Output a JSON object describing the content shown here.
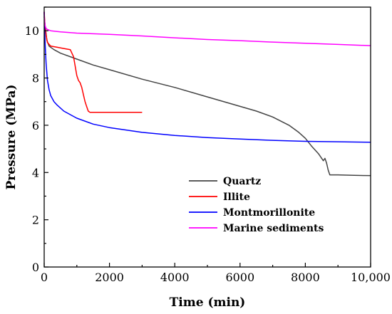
{
  "chart_data": {
    "type": "line",
    "title": "",
    "xlabel": "Time (min)",
    "ylabel": "Pressure (MPa)",
    "xlim": [
      0,
      10000
    ],
    "ylim": [
      0,
      11
    ],
    "xticks": [
      0,
      2000,
      4000,
      6000,
      8000,
      10000
    ],
    "xtick_labels": [
      "0",
      "2000",
      "4000",
      "6000",
      "8000",
      "10,000"
    ],
    "yticks": [
      0,
      2,
      4,
      6,
      8,
      10
    ],
    "ytick_labels": [
      "0",
      "2",
      "4",
      "6",
      "8",
      "10"
    ],
    "grid": false,
    "legend_position": "lower-right",
    "series": [
      {
        "name": "Quartz",
        "color": "#444444",
        "x": [
          0,
          30,
          80,
          150,
          300,
          500,
          1000,
          1500,
          2000,
          3000,
          4000,
          5000,
          6000,
          6500,
          7000,
          7500,
          7800,
          8000,
          8200,
          8400,
          8550,
          8600,
          8650,
          8700,
          8750,
          8800,
          9000,
          9500,
          10000
        ],
        "y": [
          10.6,
          10.2,
          9.6,
          9.35,
          9.2,
          9.05,
          8.8,
          8.55,
          8.35,
          7.95,
          7.6,
          7.2,
          6.8,
          6.6,
          6.35,
          6.0,
          5.7,
          5.45,
          5.1,
          4.8,
          4.5,
          4.6,
          4.4,
          4.1,
          3.9,
          3.9,
          3.9,
          3.88,
          3.87
        ]
      },
      {
        "name": "Illite",
        "color": "#ff0000",
        "x": [
          0,
          20,
          60,
          100,
          200,
          400,
          600,
          800,
          900,
          1000,
          1050,
          1100,
          1150,
          1200,
          1250,
          1300,
          1350,
          1400,
          1500,
          2000,
          2500,
          3000
        ],
        "y": [
          10.8,
          10.3,
          9.8,
          9.5,
          9.35,
          9.3,
          9.25,
          9.2,
          8.9,
          8.1,
          7.9,
          7.8,
          7.6,
          7.3,
          7.0,
          6.8,
          6.6,
          6.55,
          6.55,
          6.55,
          6.55,
          6.55
        ]
      },
      {
        "name": "Montmorillonite",
        "color": "#0000ff",
        "x": [
          0,
          10,
          30,
          60,
          100,
          150,
          200,
          300,
          400,
          600,
          800,
          1000,
          1500,
          2000,
          3000,
          4000,
          5000,
          6000,
          7000,
          8000,
          9000,
          10000
        ],
        "y": [
          10.8,
          10.2,
          9.4,
          8.6,
          7.9,
          7.5,
          7.25,
          7.0,
          6.85,
          6.6,
          6.45,
          6.3,
          6.05,
          5.9,
          5.7,
          5.57,
          5.48,
          5.42,
          5.36,
          5.32,
          5.3,
          5.28
        ]
      },
      {
        "name": "Marine sediments",
        "color": "#ff00ff",
        "x": [
          0,
          10,
          30,
          60,
          100,
          200,
          500,
          1000,
          2000,
          3000,
          4000,
          5000,
          6000,
          7000,
          8000,
          9000,
          10000
        ],
        "y": [
          10.8,
          10.4,
          10.2,
          10.1,
          10.05,
          10.0,
          9.95,
          9.9,
          9.85,
          9.78,
          9.7,
          9.63,
          9.58,
          9.52,
          9.47,
          9.42,
          9.37
        ]
      }
    ]
  }
}
